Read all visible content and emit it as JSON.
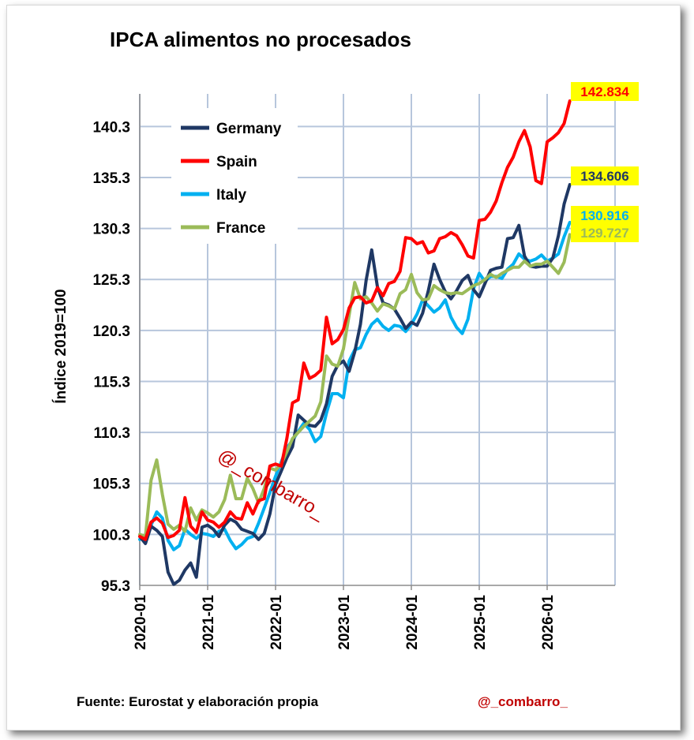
{
  "chart_data": {
    "type": "line",
    "title": "IPCA alimentos no procesados",
    "ylabel": "Índice 2019=100",
    "xlabel": "",
    "ylim": [
      95.3,
      142.8
    ],
    "yticks": [
      "95.3",
      "100.3",
      "105.3",
      "110.3",
      "115.3",
      "120.3",
      "125.3",
      "130.3",
      "135.3",
      "140.3"
    ],
    "ytick_values": [
      95.3,
      100.3,
      105.3,
      110.3,
      115.3,
      120.3,
      125.3,
      130.3,
      135.3,
      140.3
    ],
    "xlim_months": [
      0,
      84
    ],
    "xticks": [
      "2020-01",
      "2021-01",
      "2022-01",
      "2023-01",
      "2024-01",
      "2025-01",
      "2026-01"
    ],
    "xtick_months": [
      0,
      12,
      24,
      36,
      48,
      60,
      72
    ],
    "grid": true,
    "legend": "top-left",
    "series": [
      {
        "name": "Germany",
        "color": "#1f3864",
        "end_label": "134.606",
        "label_bg": "#ffff00",
        "label_color": "#1f3864",
        "values": [
          100.1,
          99.4,
          101.1,
          100.7,
          100.1,
          96.6,
          95.4,
          95.8,
          96.8,
          97.5,
          96.1,
          101.0,
          101.2,
          100.8,
          100.1,
          101.2,
          101.8,
          101.5,
          100.8,
          100.6,
          100.4,
          99.8,
          100.4,
          102.3,
          105.2,
          106.5,
          107.8,
          108.9,
          112.0,
          111.5,
          111.0,
          110.9,
          111.5,
          113.1,
          115.8,
          116.9,
          117.3,
          116.3,
          118.2,
          120.9,
          125.2,
          128.2,
          124.6,
          123.0,
          122.8,
          122.4,
          121.5,
          120.5,
          121.1,
          120.8,
          122.0,
          124.2,
          126.8,
          125.3,
          124.1,
          123.4,
          124.2,
          125.2,
          125.7,
          124.3,
          123.6,
          124.9,
          126.2,
          126.4,
          126.5,
          129.3,
          129.4,
          130.6,
          127.6,
          126.6,
          126.5,
          126.6,
          126.6,
          127.4,
          129.6,
          132.7,
          134.6
        ]
      },
      {
        "name": "Spain",
        "color": "#ff0000",
        "end_label": "142.834",
        "label_bg": "#ffff00",
        "label_color": "#ff0000",
        "values": [
          100.1,
          99.8,
          101.5,
          101.9,
          101.4,
          100.0,
          100.2,
          100.7,
          103.9,
          101.1,
          100.5,
          102.5,
          101.7,
          101.5,
          101.0,
          101.5,
          102.5,
          101.9,
          101.8,
          103.4,
          102.3,
          103.6,
          103.8,
          107.0,
          107.2,
          107.0,
          109.7,
          113.2,
          113.5,
          117.1,
          115.6,
          115.9,
          116.4,
          121.6,
          119.0,
          119.4,
          120.4,
          122.5,
          123.5,
          123.6,
          123.0,
          123.2,
          124.5,
          123.7,
          124.9,
          125.1,
          126.1,
          129.4,
          129.3,
          128.8,
          129.0,
          127.9,
          128.1,
          129.3,
          129.5,
          129.9,
          129.6,
          128.7,
          127.6,
          127.4,
          131.1,
          131.2,
          131.9,
          133.0,
          134.8,
          136.3,
          137.3,
          138.8,
          139.9,
          138.3,
          135.0,
          134.7,
          138.8,
          139.2,
          139.7,
          140.6,
          142.8
        ]
      },
      {
        "name": "Italy",
        "color": "#00b0f0",
        "end_label": "130.916",
        "label_bg": "#ffff00",
        "label_color": "#00b0f0",
        "values": [
          99.8,
          100.1,
          101.2,
          102.5,
          101.9,
          99.7,
          98.8,
          99.2,
          100.8,
          100.3,
          99.9,
          100.4,
          100.3,
          100.1,
          100.6,
          100.8,
          99.7,
          98.9,
          99.3,
          99.9,
          100.1,
          101.4,
          102.9,
          104.4,
          106.0,
          107.4,
          108.8,
          109.5,
          110.4,
          111.2,
          110.6,
          109.4,
          109.9,
          112.2,
          114.1,
          114.1,
          113.7,
          117.3,
          118.4,
          118.6,
          119.9,
          120.9,
          121.4,
          120.7,
          120.3,
          120.8,
          120.7,
          120.2,
          120.9,
          121.9,
          123.3,
          122.7,
          122.1,
          122.5,
          123.3,
          121.6,
          120.6,
          120.0,
          121.4,
          124.4,
          125.9,
          125.1,
          125.6,
          125.6,
          125.4,
          126.3,
          126.8,
          127.8,
          127.3,
          127.1,
          127.3,
          127.7,
          127.1,
          127.4,
          127.8,
          129.5,
          130.9
        ]
      },
      {
        "name": "France",
        "color": "#9bbb59",
        "end_label": "129.727",
        "label_bg": "#ffff00",
        "label_color": "#9bbb59",
        "values": [
          100.3,
          100.1,
          105.6,
          107.6,
          104.2,
          101.3,
          100.8,
          101.2,
          100.6,
          102.9,
          101.7,
          102.7,
          102.4,
          102.0,
          102.5,
          103.7,
          106.1,
          103.8,
          103.8,
          105.8,
          104.8,
          103.4,
          104.8,
          106.8,
          106.6,
          107.2,
          108.4,
          109.7,
          110.3,
          110.9,
          111.4,
          111.9,
          113.3,
          117.8,
          117.0,
          116.8,
          118.5,
          121.8,
          125.0,
          123.4,
          123.6,
          123.0,
          122.2,
          122.9,
          122.7,
          122.4,
          123.9,
          124.3,
          125.8,
          124.0,
          123.3,
          123.4,
          124.7,
          124.3,
          124.0,
          123.9,
          124.0,
          123.9,
          124.3,
          124.7,
          124.9,
          125.3,
          125.8,
          125.5,
          125.9,
          126.2,
          126.5,
          126.5,
          127.1,
          126.6,
          126.8,
          126.8,
          127.1,
          126.5,
          125.9,
          127.0,
          129.7
        ]
      }
    ]
  },
  "footer": {
    "source": "Fuente: Eurostat y elaboración propia",
    "handle": "@_combarro_"
  },
  "watermark": "@_combarro_"
}
